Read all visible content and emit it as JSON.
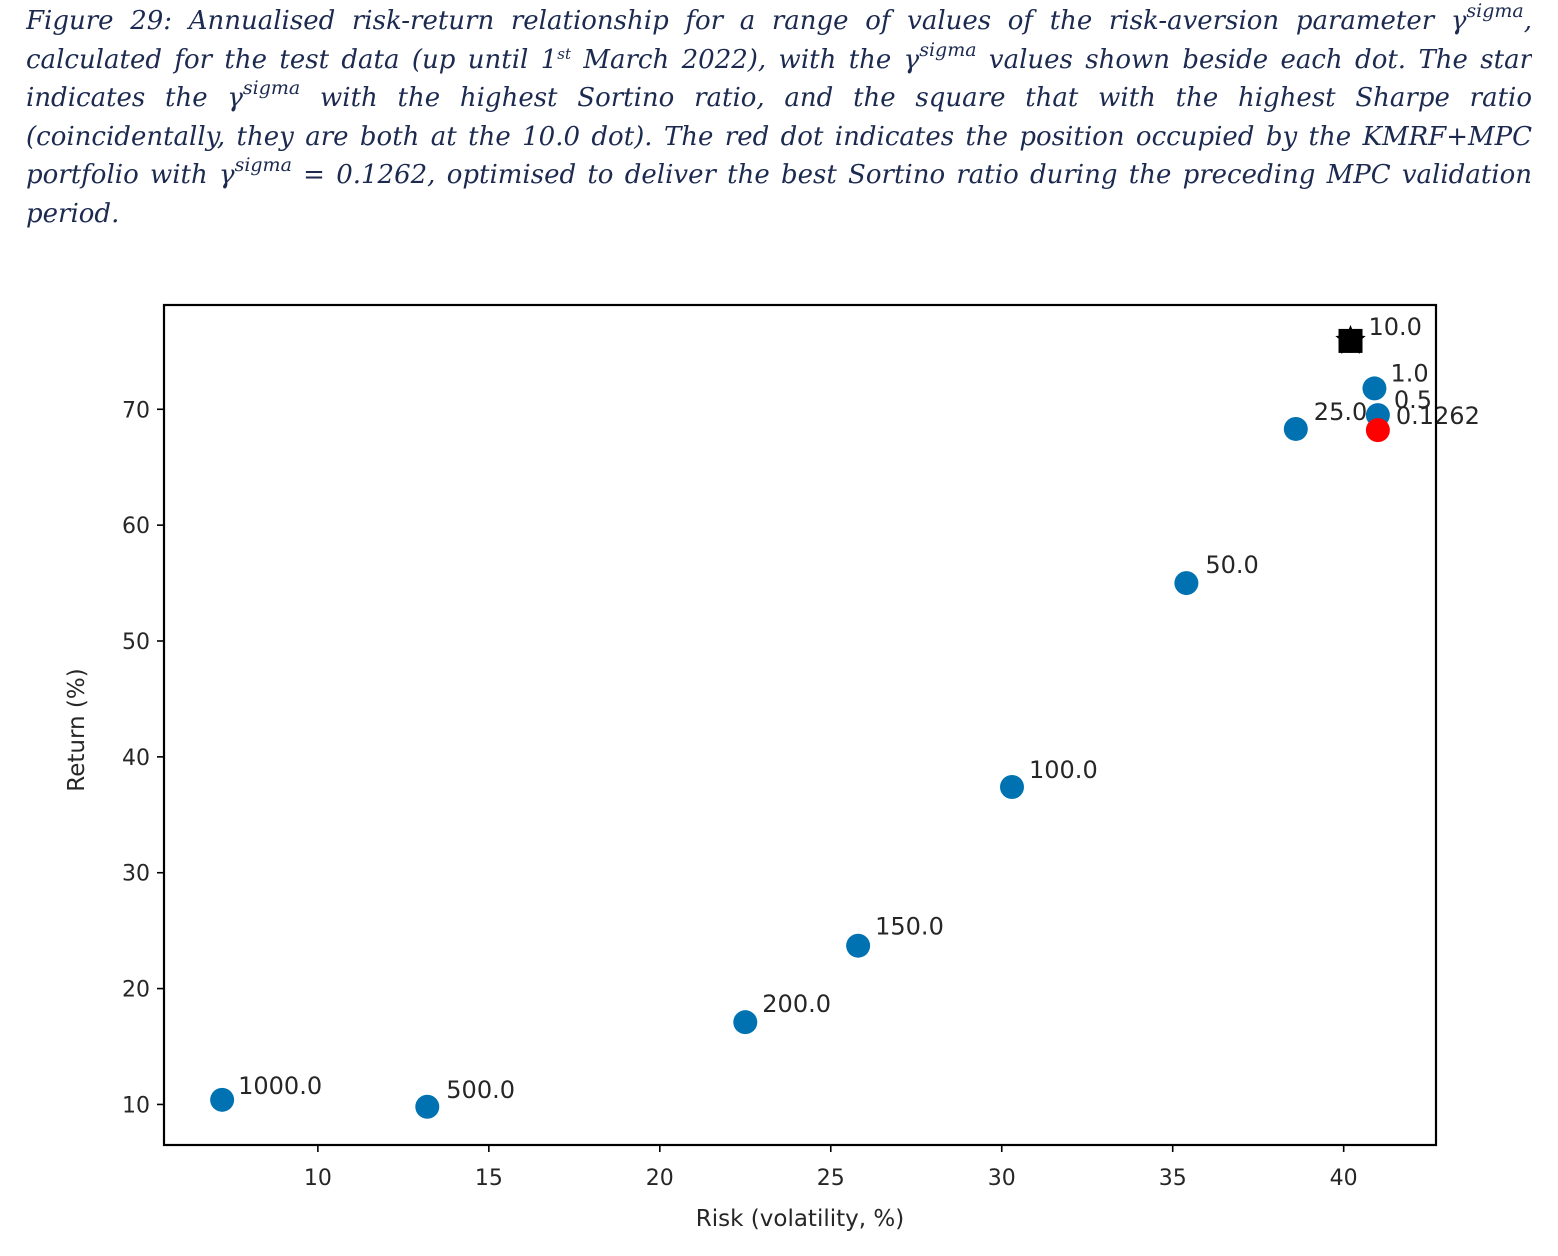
{
  "caption": {
    "line1": "Figure 29: Annualised risk-return relationship for a range of values of the risk-aversion parameter γ",
    "line1_sup": "sigma",
    "line1_end": ",",
    "line2_a": "calculated for the test data (up until 1",
    "line2_st": "st",
    "line2_b": " March 2022), with the γ",
    "line2_sup": "sigma",
    "line2_c": "  values shown beside each dot. The star",
    "line3_a": "indicates the γ",
    "line3_sup": "sigma",
    "line3_b": " with the highest Sortino ratio, and the square that with the highest Sharpe ratio",
    "line4": "(coincidentally, they are both at the 10.0 dot). The red dot indicates the position occupied by the KMRF+MPC",
    "line5_a": "portfolio with γ",
    "line5_sup": "sigma",
    "line5_b": " = 0.1262, optimised to deliver the best Sortino ratio during the preceding MPC validation",
    "line6": "period."
  },
  "chart_data": {
    "type": "scatter",
    "xlabel": "Risk (volatility, %)",
    "ylabel": "Return (%)",
    "xlim": [
      5.5,
      42.7
    ],
    "ylim": [
      6.5,
      79
    ],
    "xticks": [
      10,
      15,
      20,
      25,
      30,
      35,
      40
    ],
    "yticks": [
      10,
      20,
      30,
      40,
      50,
      60,
      70
    ],
    "grid": false,
    "point_color": "#0072b2",
    "highlight_color": "#ff0000",
    "marker_color": "#000000",
    "points": [
      {
        "label": "1000.0",
        "x": 7.2,
        "y": 10.4
      },
      {
        "label": "500.0",
        "x": 13.2,
        "y": 9.8
      },
      {
        "label": "200.0",
        "x": 22.5,
        "y": 17.1
      },
      {
        "label": "150.0",
        "x": 25.8,
        "y": 23.7
      },
      {
        "label": "100.0",
        "x": 30.3,
        "y": 37.4
      },
      {
        "label": "50.0",
        "x": 35.4,
        "y": 55.0
      },
      {
        "label": "25.0",
        "x": 38.6,
        "y": 68.3
      },
      {
        "label": "10.0",
        "x": 40.2,
        "y": 75.9
      },
      {
        "label": "1.0",
        "x": 40.9,
        "y": 71.8
      },
      {
        "label": "0.5",
        "x": 41.0,
        "y": 69.5
      }
    ],
    "highlight_point": {
      "label": "0.1262",
      "x": 41.0,
      "y": 68.2
    },
    "best_sortino_star": {
      "x": 40.2,
      "y": 75.9
    },
    "best_sharpe_square": {
      "x": 40.2,
      "y": 75.9
    }
  }
}
